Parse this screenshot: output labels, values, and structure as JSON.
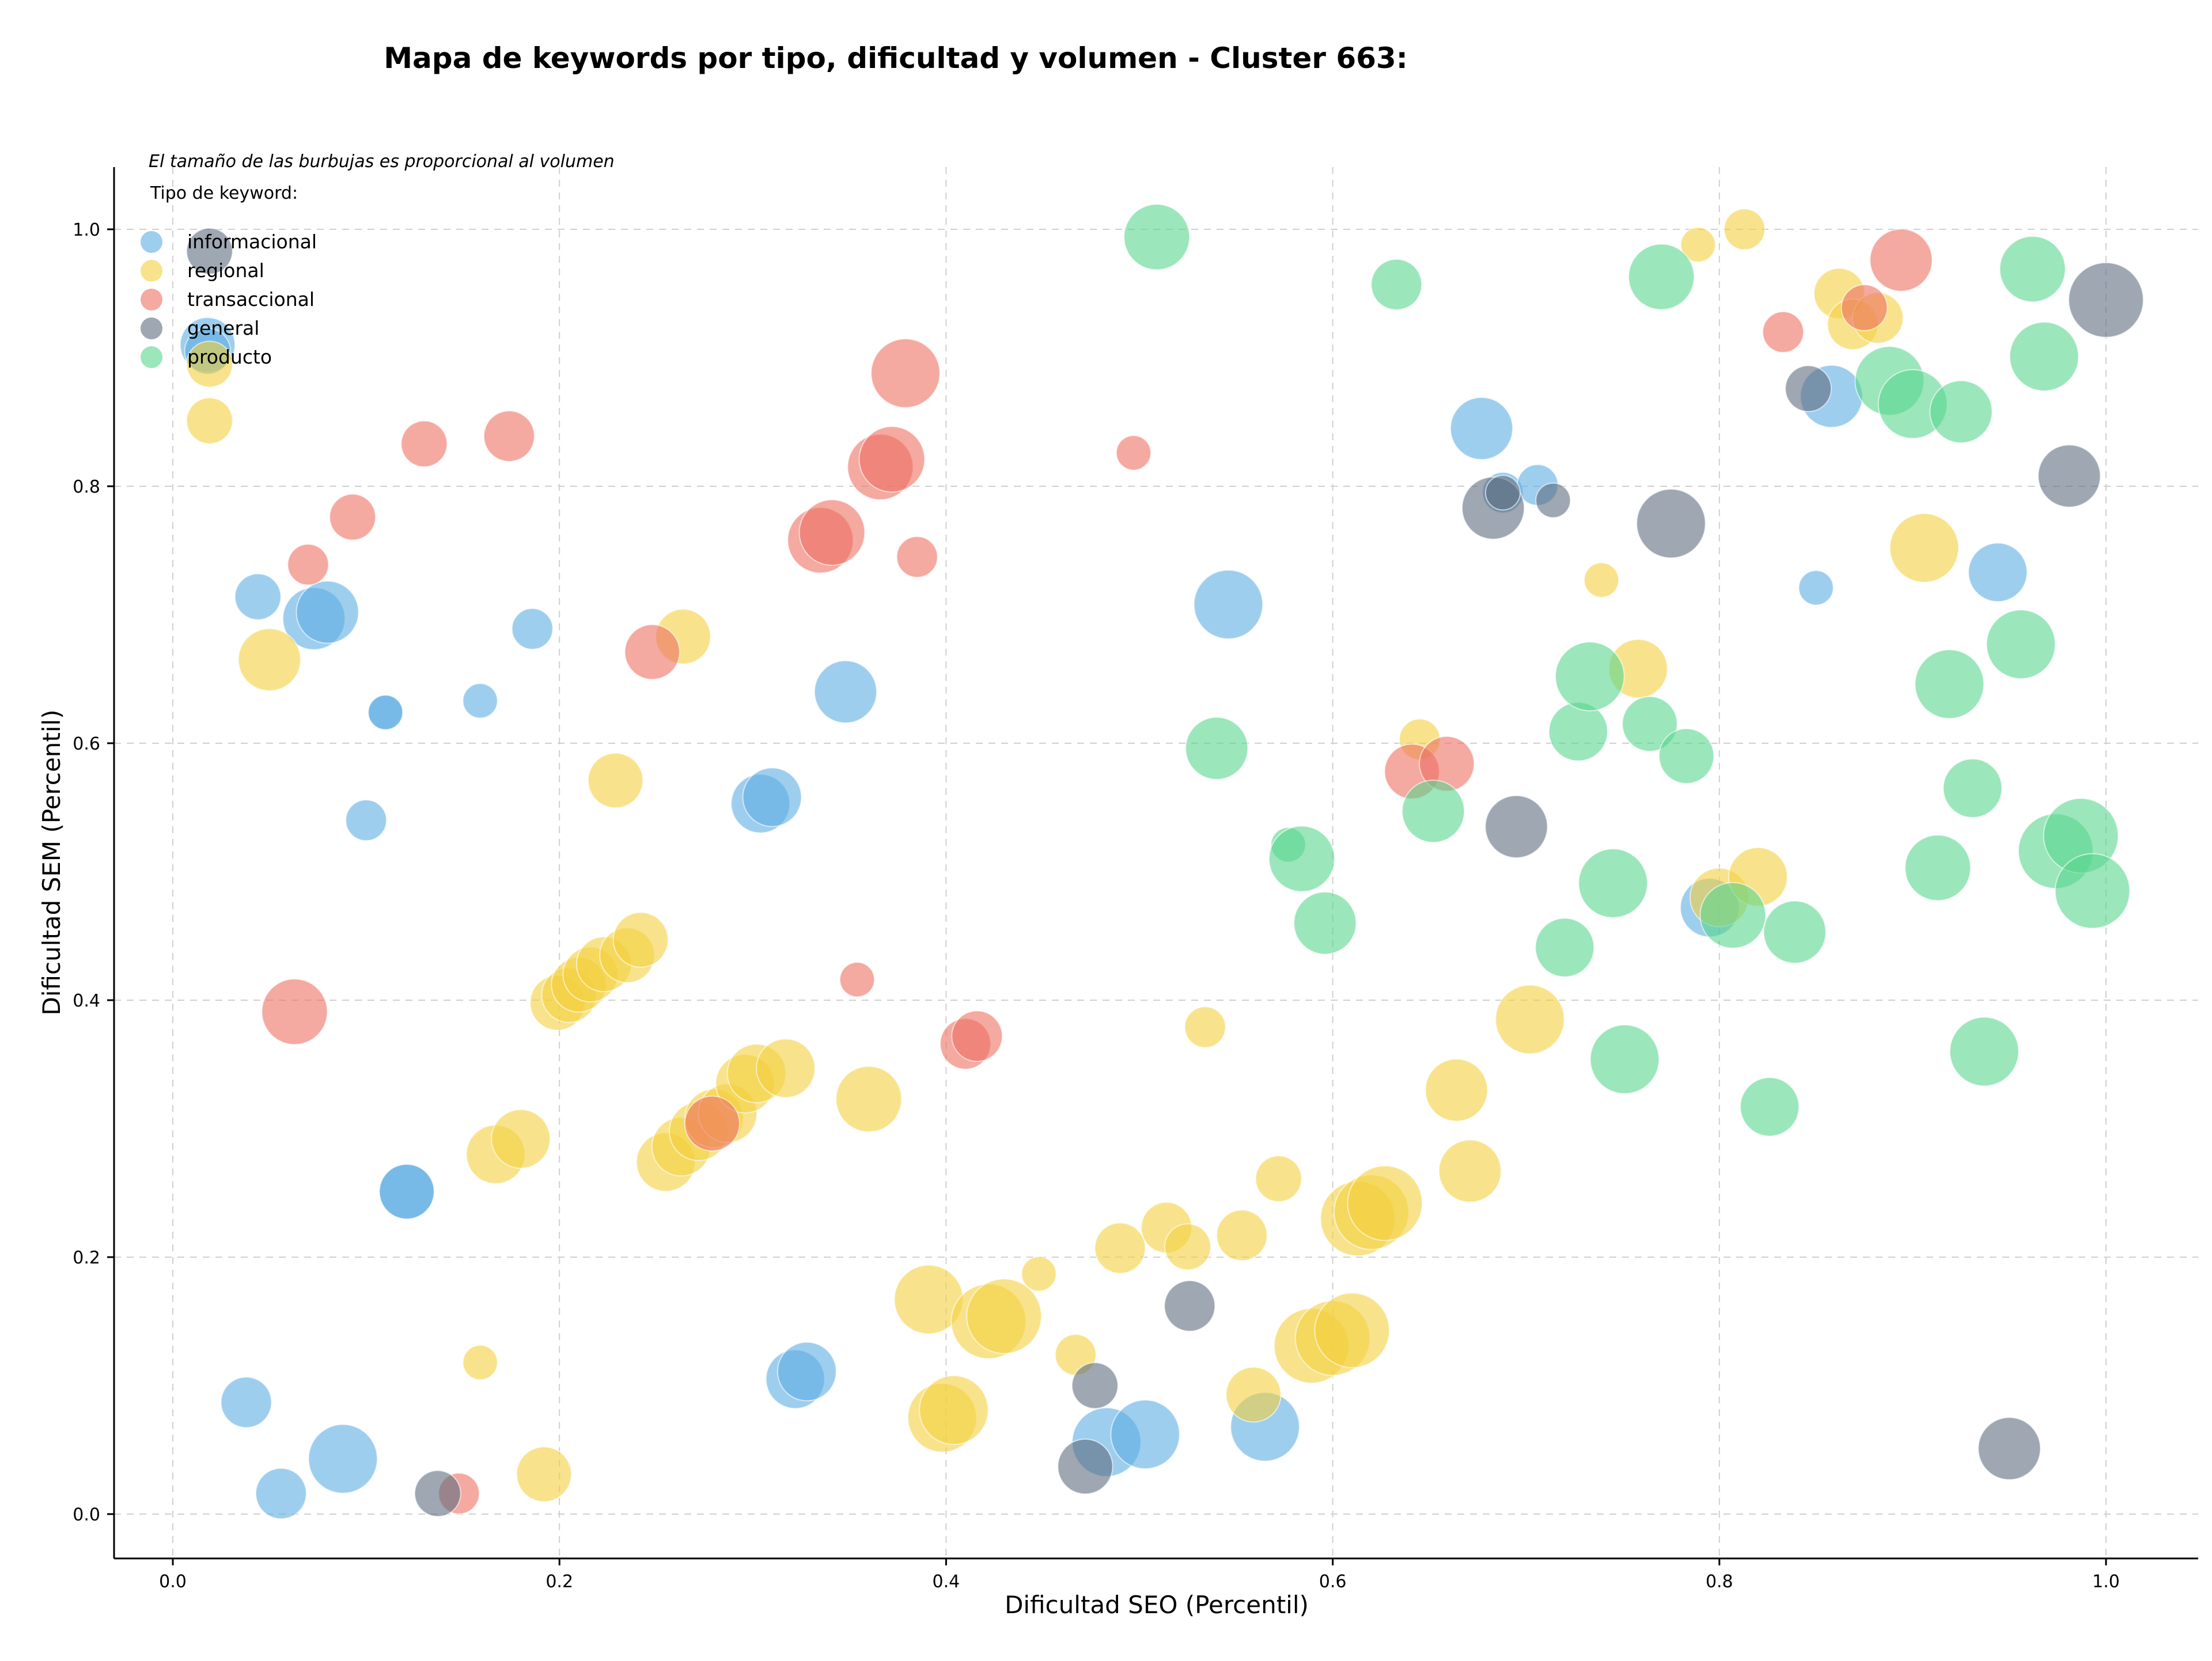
{
  "chart_data": {
    "type": "scatter",
    "title": "Mapa de keywords por tipo, dificultad y volumen - Cluster 663:",
    "xlabel": "Dificultad SEO (Percentil)",
    "ylabel": "Dificultad SEM (Percentil)",
    "xlim": [
      -0.03,
      1.05
    ],
    "ylim": [
      -0.03,
      1.05
    ],
    "xticks": [
      "0.0",
      "0.2",
      "0.4",
      "0.6",
      "0.8",
      "1.0"
    ],
    "yticks": [
      "0.0",
      "0.2",
      "0.4",
      "0.6",
      "0.8",
      "1.0"
    ],
    "grid": true,
    "note": "El tamaño de las burbujas es proporcional al volumen",
    "legend_title": "Tipo de keyword:",
    "legend_position": "top-left",
    "series": [
      {
        "name": "informacional",
        "color": "#5DADE2",
        "points": [
          [
            0.018,
            0.91,
            3
          ],
          [
            0.018,
            0.905,
            2
          ],
          [
            0.044,
            0.714,
            2
          ],
          [
            0.073,
            0.697,
            4
          ],
          [
            0.08,
            0.702,
            4
          ],
          [
            0.11,
            0.624,
            1
          ],
          [
            0.11,
            0.624,
            1
          ],
          [
            0.1,
            0.54,
            1.5
          ],
          [
            0.159,
            0.633,
            1
          ],
          [
            0.186,
            0.689,
            1.5
          ],
          [
            0.121,
            0.251,
            3
          ],
          [
            0.121,
            0.251,
            3
          ],
          [
            0.038,
            0.087,
            2.5
          ],
          [
            0.056,
            0.016,
            2.5
          ],
          [
            0.088,
            0.043,
            5
          ],
          [
            0.304,
            0.553,
            3.5
          ],
          [
            0.31,
            0.558,
            3.5
          ],
          [
            0.348,
            0.64,
            4
          ],
          [
            0.322,
            0.105,
            3.5
          ],
          [
            0.328,
            0.111,
            3.5
          ],
          [
            0.546,
            0.708,
            5
          ],
          [
            0.565,
            0.068,
            5
          ],
          [
            0.483,
            0.056,
            5
          ],
          [
            0.503,
            0.062,
            5
          ],
          [
            0.677,
            0.845,
            4
          ],
          [
            0.688,
            0.795,
            1.5
          ],
          [
            0.706,
            0.801,
            1.5
          ],
          [
            0.85,
            0.721,
            1
          ],
          [
            0.858,
            0.87,
            4
          ],
          [
            0.944,
            0.733,
            3.5
          ],
          [
            0.795,
            0.472,
            3.5
          ]
        ]
      },
      {
        "name": "regional",
        "color": "#F4D03F",
        "points": [
          [
            0.019,
            0.895,
            2
          ],
          [
            0.019,
            0.851,
            2
          ],
          [
            0.05,
            0.665,
            4
          ],
          [
            0.264,
            0.683,
            3
          ],
          [
            0.229,
            0.571,
            3
          ],
          [
            0.159,
            0.118,
            1
          ],
          [
            0.192,
            0.031,
            3
          ],
          [
            0.199,
            0.398,
            3
          ],
          [
            0.205,
            0.404,
            3
          ],
          [
            0.21,
            0.412,
            3
          ],
          [
            0.216,
            0.42,
            3
          ],
          [
            0.223,
            0.428,
            3
          ],
          [
            0.235,
            0.435,
            3
          ],
          [
            0.242,
            0.447,
            3
          ],
          [
            0.167,
            0.28,
            3.5
          ],
          [
            0.18,
            0.292,
            3.5
          ],
          [
            0.255,
            0.274,
            3.5
          ],
          [
            0.263,
            0.286,
            3.5
          ],
          [
            0.272,
            0.298,
            3.5
          ],
          [
            0.28,
            0.308,
            3.5
          ],
          [
            0.287,
            0.312,
            3.5
          ],
          [
            0.296,
            0.335,
            3.5
          ],
          [
            0.302,
            0.343,
            3.5
          ],
          [
            0.317,
            0.347,
            3.5
          ],
          [
            0.36,
            0.323,
            4.5
          ],
          [
            0.391,
            0.167,
            5
          ],
          [
            0.398,
            0.075,
            5
          ],
          [
            0.404,
            0.081,
            5
          ],
          [
            0.422,
            0.15,
            6
          ],
          [
            0.43,
            0.154,
            6
          ],
          [
            0.448,
            0.187,
            1
          ],
          [
            0.467,
            0.124,
            1.5
          ],
          [
            0.49,
            0.207,
            2.5
          ],
          [
            0.514,
            0.223,
            2.5
          ],
          [
            0.525,
            0.208,
            2
          ],
          [
            0.534,
            0.379,
            1.5
          ],
          [
            0.553,
            0.217,
            2.5
          ],
          [
            0.559,
            0.093,
            3
          ],
          [
            0.572,
            0.261,
            2
          ],
          [
            0.589,
            0.131,
            6
          ],
          [
            0.6,
            0.137,
            6
          ],
          [
            0.61,
            0.143,
            6
          ],
          [
            0.613,
            0.23,
            6
          ],
          [
            0.62,
            0.235,
            6
          ],
          [
            0.627,
            0.242,
            6
          ],
          [
            0.664,
            0.33,
            4
          ],
          [
            0.671,
            0.267,
            4
          ],
          [
            0.702,
            0.385,
            5
          ],
          [
            0.739,
            0.727,
            1
          ],
          [
            0.758,
            0.658,
            3.5
          ],
          [
            0.645,
            0.603,
            1.5
          ],
          [
            0.789,
            0.988,
            1
          ],
          [
            0.813,
            1.0,
            1.5
          ],
          [
            0.862,
            0.95,
            2.5
          ],
          [
            0.869,
            0.926,
            2.5
          ],
          [
            0.882,
            0.931,
            2.5
          ],
          [
            0.906,
            0.752,
            5
          ],
          [
            0.8,
            0.48,
            3.5
          ],
          [
            0.82,
            0.496,
            3.5
          ]
        ]
      },
      {
        "name": "transaccional",
        "color": "#EC7063",
        "points": [
          [
            0.063,
            0.391,
            4.5
          ],
          [
            0.07,
            0.739,
            1.5
          ],
          [
            0.093,
            0.776,
            2
          ],
          [
            0.13,
            0.833,
            2
          ],
          [
            0.174,
            0.839,
            2.5
          ],
          [
            0.148,
            0.016,
            1.5
          ],
          [
            0.248,
            0.671,
            3
          ],
          [
            0.335,
            0.758,
            4.5
          ],
          [
            0.341,
            0.764,
            4.5
          ],
          [
            0.354,
            0.416,
            1
          ],
          [
            0.366,
            0.815,
            4.5
          ],
          [
            0.372,
            0.821,
            4.5
          ],
          [
            0.379,
            0.888,
            5
          ],
          [
            0.385,
            0.745,
            1.5
          ],
          [
            0.41,
            0.366,
            2.5
          ],
          [
            0.416,
            0.372,
            2.5
          ],
          [
            0.279,
            0.304,
            3
          ],
          [
            0.497,
            0.826,
            1
          ],
          [
            0.641,
            0.578,
            3
          ],
          [
            0.659,
            0.584,
            3
          ],
          [
            0.833,
            0.92,
            1.5
          ],
          [
            0.875,
            0.939,
            2
          ],
          [
            0.894,
            0.976,
            4
          ]
        ]
      },
      {
        "name": "general",
        "color": "#5D6D7E",
        "points": [
          [
            0.019,
            0.983,
            2
          ],
          [
            0.137,
            0.016,
            2
          ],
          [
            0.472,
            0.037,
            3
          ],
          [
            0.477,
            0.1,
            2
          ],
          [
            0.526,
            0.162,
            2.5
          ],
          [
            0.683,
            0.783,
            4
          ],
          [
            0.688,
            0.795,
            1
          ],
          [
            0.714,
            0.789,
            1
          ],
          [
            0.695,
            0.535,
            4
          ],
          [
            0.775,
            0.771,
            5
          ],
          [
            0.846,
            0.876,
            2
          ],
          [
            0.95,
            0.051,
            4
          ],
          [
            0.981,
            0.808,
            4
          ],
          [
            1.0,
            0.945,
            6
          ]
        ]
      },
      {
        "name": "producto",
        "color": "#58D68D",
        "points": [
          [
            0.509,
            0.994,
            4.5
          ],
          [
            0.633,
            0.957,
            2.5
          ],
          [
            0.77,
            0.963,
            4.5
          ],
          [
            0.54,
            0.596,
            4
          ],
          [
            0.577,
            0.521,
            1
          ],
          [
            0.584,
            0.51,
            4.5
          ],
          [
            0.596,
            0.46,
            4
          ],
          [
            0.652,
            0.547,
            4
          ],
          [
            0.72,
            0.441,
            3.5
          ],
          [
            0.727,
            0.609,
            3.5
          ],
          [
            0.733,
            0.652,
            5
          ],
          [
            0.745,
            0.491,
            5
          ],
          [
            0.751,
            0.354,
            5
          ],
          [
            0.764,
            0.615,
            3
          ],
          [
            0.783,
            0.59,
            3
          ],
          [
            0.807,
            0.466,
            4.5
          ],
          [
            0.826,
            0.317,
            3.5
          ],
          [
            0.839,
            0.453,
            4
          ],
          [
            0.888,
            0.882,
            5
          ],
          [
            0.9,
            0.864,
            5
          ],
          [
            0.925,
            0.858,
            4
          ],
          [
            0.913,
            0.503,
            4.5
          ],
          [
            0.919,
            0.646,
            5
          ],
          [
            0.931,
            0.565,
            3.5
          ],
          [
            0.937,
            0.36,
            5
          ],
          [
            0.956,
            0.677,
            5
          ],
          [
            0.962,
            0.969,
            4.5
          ],
          [
            0.968,
            0.901,
            5
          ],
          [
            0.974,
            0.516,
            6
          ],
          [
            0.987,
            0.528,
            6
          ],
          [
            0.993,
            0.485,
            6
          ]
        ]
      }
    ]
  }
}
